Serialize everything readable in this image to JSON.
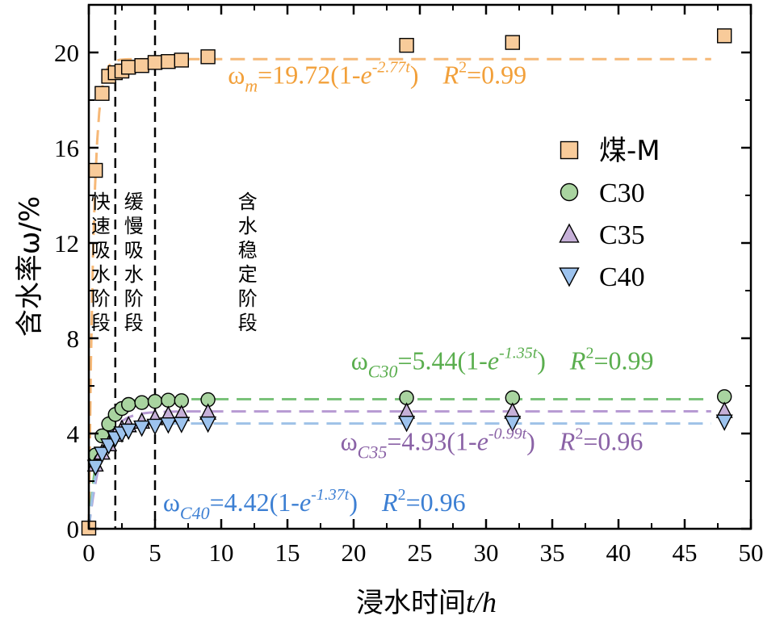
{
  "chart_data": {
    "type": "scatter",
    "x_label_prefix": "浸水时间",
    "x_label_var": "t/h",
    "y_label": "含水率ω/%",
    "xlim": [
      0,
      50
    ],
    "ylim": [
      0,
      22
    ],
    "x_ticks": [
      0,
      5,
      10,
      15,
      20,
      25,
      30,
      35,
      40,
      45,
      50
    ],
    "y_ticks": [
      0,
      4,
      8,
      12,
      16,
      20
    ],
    "x_tick_labels": [
      "0",
      "5",
      "10",
      "15",
      "20",
      "25",
      "30",
      "35",
      "40",
      "45",
      "50"
    ],
    "y_tick_labels": [
      "0",
      "4",
      "8",
      "12",
      "16",
      "20"
    ],
    "phase_lines": [
      2,
      5
    ],
    "phases": [
      {
        "label": "快速吸水阶段",
        "chars": [
          "快",
          "速",
          "吸",
          "水",
          "阶",
          "段"
        ],
        "x": 0.9
      },
      {
        "label": "缓慢吸水阶段",
        "chars": [
          "缓",
          "慢",
          "吸",
          "水",
          "阶",
          "段"
        ],
        "x": 3.4
      },
      {
        "label": "含水稳定阶段",
        "chars": [
          "含",
          "水",
          "稳",
          "定",
          "阶",
          "段"
        ],
        "x": 12
      }
    ],
    "fit_x_max": 47,
    "series": [
      {
        "name": "煤-M",
        "marker": "square",
        "color": "#F8CB9A",
        "fit_color": "#F6B877",
        "x": [
          0,
          0.5,
          1,
          1.5,
          2,
          2.5,
          3,
          4,
          5,
          6,
          7,
          9,
          24,
          32,
          48
        ],
        "y": [
          0.03,
          15.05,
          18.28,
          19.0,
          19.15,
          19.22,
          19.38,
          19.45,
          19.58,
          19.62,
          19.68,
          19.82,
          20.3,
          20.42,
          20.7
        ],
        "fit": {
          "a": 19.72,
          "k": 2.77,
          "r2": "0.99"
        },
        "eq": {
          "sym": "ω",
          "sub": "m",
          "coef": "=19.72(1-",
          "e": "e",
          "exp": "-2.77t",
          "close": ")",
          "r": "R",
          "sup2": "2",
          "r2": "=0.99"
        },
        "eq_color": "#F2A03A",
        "eq_pos": [
          10.5,
          18.7
        ]
      },
      {
        "name": "C30",
        "marker": "circle",
        "color": "#A9D4A0",
        "fit_color": "#7AC27A",
        "x": [
          0.5,
          1,
          1.5,
          2,
          2.5,
          3,
          4,
          5,
          6,
          7,
          9,
          24,
          32,
          48
        ],
        "y": [
          3.1,
          3.9,
          4.4,
          4.8,
          5.05,
          5.22,
          5.3,
          5.35,
          5.4,
          5.38,
          5.42,
          5.5,
          5.5,
          5.55
        ],
        "fit": {
          "a": 5.44,
          "k": 1.35,
          "r2": "0.99"
        },
        "eq": {
          "sym": "ω",
          "sub": "C30",
          "coef": "=5.44(1-",
          "e": "e",
          "exp": "-1.35t",
          "close": ")",
          "r": "R",
          "sup2": "2",
          "r2": "=0.99"
        },
        "eq_color": "#5AAE4E",
        "eq_pos": [
          19.8,
          6.7
        ]
      },
      {
        "name": "C35",
        "marker": "triangle-up",
        "color": "#C6B0D8",
        "fit_color": "#B79AD3",
        "x": [
          0.5,
          1,
          1.5,
          2,
          2.5,
          3,
          4,
          5,
          6,
          7,
          9,
          24,
          32,
          48
        ],
        "y": [
          2.7,
          3.2,
          3.55,
          3.95,
          4.2,
          4.35,
          4.5,
          4.65,
          4.78,
          4.82,
          4.88,
          4.92,
          4.92,
          4.95
        ],
        "fit": {
          "a": 4.93,
          "k": 0.99,
          "r2": "0.96"
        },
        "eq": {
          "sym": "ω",
          "sub": "C35",
          "coef": "=4.93(1-",
          "e": "e",
          "exp": "-0.99t",
          "close": ")",
          "r": "R",
          "sup2": "2",
          "r2": "=0.96"
        },
        "eq_color": "#8A62A6",
        "eq_pos": [
          19,
          3.3
        ]
      },
      {
        "name": "C40",
        "marker": "triangle-down",
        "color": "#9DC3EE",
        "fit_color": "#9FC2E7",
        "x": [
          0.5,
          1,
          1.5,
          2,
          2.5,
          3,
          4,
          5,
          6,
          7,
          9,
          24,
          32,
          48
        ],
        "y": [
          2.6,
          3.15,
          3.5,
          3.8,
          4.0,
          4.12,
          4.25,
          4.32,
          4.38,
          4.4,
          4.42,
          4.45,
          4.45,
          4.5
        ],
        "fit": {
          "a": 4.42,
          "k": 1.37,
          "r2": "0.96"
        },
        "eq": {
          "sym": "ω",
          "sub": "C40",
          "coef": "=4.42(1-",
          "e": "e",
          "exp": "-1.37t",
          "close": ")",
          "r": "R",
          "sup2": "2",
          "r2": "=0.96"
        },
        "eq_color": "#3C7FD3",
        "eq_pos": [
          5.6,
          0.75
        ]
      }
    ],
    "legend_position": "upper-right"
  }
}
